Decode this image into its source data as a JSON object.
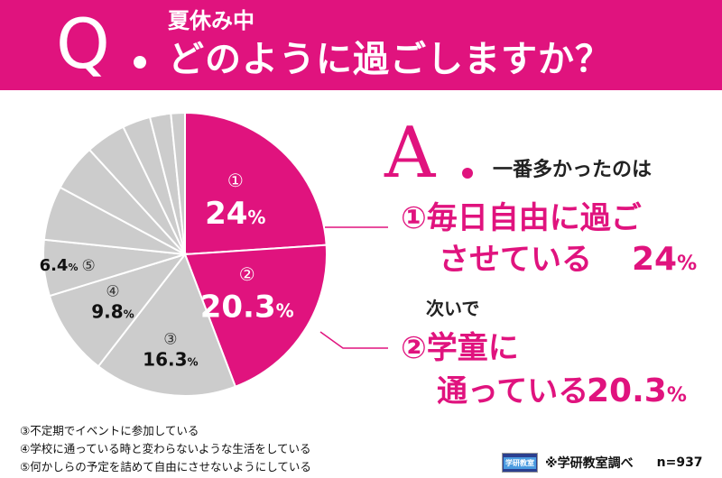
{
  "question": {
    "letter": "Q",
    "sub": "夏休み中",
    "main": "どのように過ごしますか？"
  },
  "answer": {
    "letter": "A",
    "lead": "一番多かったのは",
    "first_line1": "①毎日自由に過ご",
    "first_line2": "させている",
    "first_pct": "24",
    "middle": "次いで",
    "second_line1": "②学童に",
    "second_line2": "通っている",
    "second_pct": "20.3",
    "pct_sign": "%"
  },
  "chart_data": {
    "type": "pie",
    "title": "",
    "slices": [
      {
        "label": "①",
        "value": 24,
        "color": "#e0137e"
      },
      {
        "label": "②",
        "value": 20.3,
        "color": "#e0137e"
      },
      {
        "label": "③",
        "value": 16.3,
        "color": "#cccccc"
      },
      {
        "label": "④",
        "value": 9.8,
        "color": "#cccccc"
      },
      {
        "label": "⑤",
        "value": 6.4,
        "color": "#cccccc"
      },
      {
        "label": "",
        "value": 6.2,
        "color": "#cccccc"
      },
      {
        "label": "",
        "value": 5.4,
        "color": "#cccccc"
      },
      {
        "label": "",
        "value": 4.6,
        "color": "#cccccc"
      },
      {
        "label": "",
        "value": 3.2,
        "color": "#cccccc"
      },
      {
        "label": "",
        "value": 2.4,
        "color": "#cccccc"
      },
      {
        "label": "",
        "value": 1.6,
        "color": "#cccccc"
      }
    ],
    "shown_labels": [
      {
        "num": "①",
        "value": "24"
      },
      {
        "num": "②",
        "value": "20.3"
      },
      {
        "num": "③",
        "value": "16.3"
      },
      {
        "num": "④",
        "value": "9.8"
      },
      {
        "num": "⑤",
        "value": "6.4"
      }
    ],
    "pct_sign": "%"
  },
  "notes": [
    "③不定期でイベントに参加している",
    "④学校に通っている時と変わらないような生活をしている",
    "⑤何かしらの予定を詰めて自由にさせないようにしている"
  ],
  "source": {
    "logo_text": "学研教室",
    "text": "※学研教室調べ",
    "n": "n=937"
  },
  "colors": {
    "accent": "#e0137e",
    "gray": "#cccccc"
  }
}
